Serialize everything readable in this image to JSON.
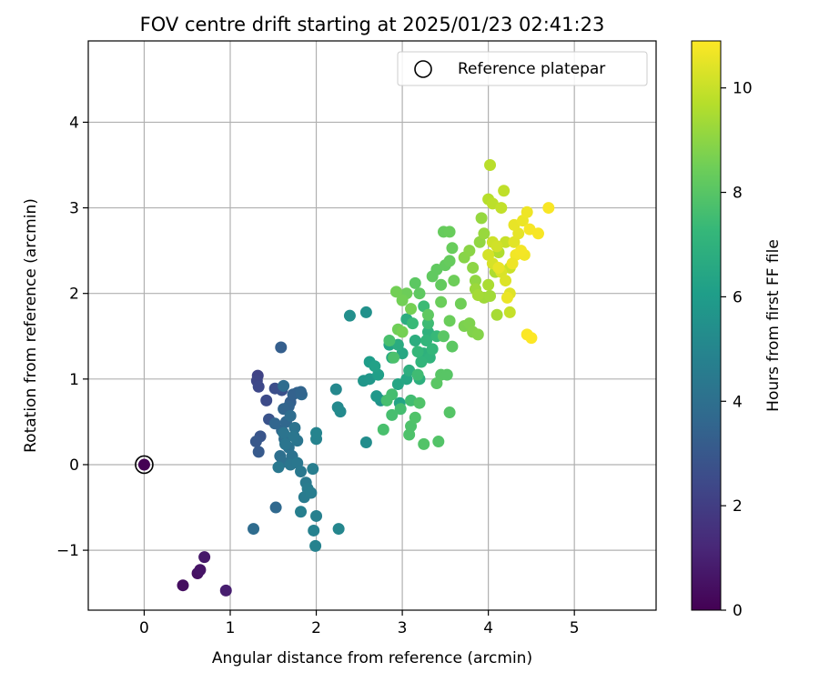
{
  "chart_data": {
    "type": "scatter",
    "title": "FOV centre drift starting at 2025/01/23 02:41:23",
    "xlabel": "Angular distance from reference (arcmin)",
    "ylabel": "Rotation from reference (arcmin)",
    "xlim": [
      -0.65,
      5.95
    ],
    "ylim": [
      -1.7,
      4.95
    ],
    "xticks": [
      0,
      1,
      2,
      3,
      4,
      5
    ],
    "yticks": [
      -1,
      0,
      1,
      2,
      3,
      4
    ],
    "xtick_labels": [
      "0",
      "1",
      "2",
      "3",
      "4",
      "5"
    ],
    "ytick_labels": [
      "−1",
      "0",
      "1",
      "2",
      "3",
      "4"
    ],
    "grid": true,
    "legend": {
      "position": "top-right",
      "entries": [
        "Reference platepar"
      ]
    },
    "reference_point": {
      "x": 0,
      "y": 0,
      "marker": "hollow-circle"
    },
    "colorbar": {
      "label": "Hours from first FF file",
      "range": [
        0,
        10.9
      ],
      "ticks": [
        0,
        2,
        4,
        6,
        8,
        10
      ],
      "tick_labels": [
        "0",
        "2",
        "4",
        "6",
        "8",
        "10"
      ],
      "colormap": "viridis"
    },
    "colormap_stops": [
      "#440154",
      "#482878",
      "#3e4989",
      "#31688e",
      "#26828e",
      "#1f9e89",
      "#35b779",
      "#6ece58",
      "#b5de2b",
      "#fde725"
    ],
    "series": [
      {
        "points": [
          [
            0.0,
            0.0,
            0.0
          ],
          [
            0.45,
            -1.41,
            0.4
          ],
          [
            0.62,
            -1.27,
            0.5
          ],
          [
            0.65,
            -1.23,
            0.6
          ],
          [
            0.7,
            -1.08,
            0.7
          ],
          [
            0.95,
            -1.47,
            0.9
          ],
          [
            1.32,
            1.04,
            2.2
          ],
          [
            1.31,
            0.98,
            2.3
          ],
          [
            1.33,
            0.91,
            2.4
          ],
          [
            1.42,
            0.75,
            2.5
          ],
          [
            1.52,
            0.89,
            2.6
          ],
          [
            1.6,
            0.87,
            2.7
          ],
          [
            1.45,
            0.53,
            2.8
          ],
          [
            1.35,
            0.33,
            2.9
          ],
          [
            1.3,
            0.27,
            3.0
          ],
          [
            1.33,
            0.15,
            3.1
          ],
          [
            1.59,
            1.37,
            3.3
          ],
          [
            1.7,
            0.73,
            3.3
          ],
          [
            1.78,
            0.84,
            3.35
          ],
          [
            1.73,
            0.82,
            3.4
          ],
          [
            1.68,
            0.68,
            3.45
          ],
          [
            1.62,
            0.65,
            3.5
          ],
          [
            1.52,
            0.48,
            3.55
          ],
          [
            1.6,
            0.4,
            3.6
          ],
          [
            1.65,
            0.5,
            3.65
          ],
          [
            1.83,
            0.82,
            3.7
          ],
          [
            1.82,
            0.85,
            3.5
          ],
          [
            1.53,
            -0.5,
            3.7
          ],
          [
            1.27,
            -0.75,
            3.8
          ],
          [
            1.62,
            0.92,
            3.8
          ],
          [
            1.7,
            0.57,
            3.85
          ],
          [
            1.63,
            0.3,
            3.9
          ],
          [
            1.58,
            0.1,
            3.95
          ],
          [
            1.61,
            0.03,
            4.0
          ],
          [
            1.68,
            0.2,
            4.05
          ],
          [
            1.72,
            0.1,
            4.1
          ],
          [
            1.75,
            0.43,
            4.15
          ],
          [
            1.62,
            0.37,
            4.2
          ],
          [
            1.78,
            0.28,
            4.25
          ],
          [
            1.7,
            0.0,
            4.3
          ],
          [
            1.78,
            0.02,
            4.35
          ],
          [
            1.82,
            -0.08,
            4.4
          ],
          [
            1.88,
            -0.21,
            4.45
          ],
          [
            1.86,
            -0.38,
            4.5
          ],
          [
            1.9,
            -0.28,
            4.55
          ],
          [
            1.94,
            -0.33,
            4.6
          ],
          [
            1.96,
            -0.05,
            4.65
          ],
          [
            1.82,
            -0.55,
            4.7
          ],
          [
            2.0,
            -0.6,
            4.75
          ],
          [
            1.97,
            -0.77,
            4.8
          ],
          [
            1.99,
            -0.95,
            4.85
          ],
          [
            2.0,
            0.3,
            4.9
          ],
          [
            2.0,
            0.37,
            4.95
          ],
          [
            1.56,
            -0.03,
            4.4
          ],
          [
            1.64,
            0.24,
            4.25
          ],
          [
            1.74,
            0.33,
            4.3
          ],
          [
            2.26,
            -0.75,
            5.0
          ],
          [
            2.23,
            0.88,
            5.1
          ],
          [
            2.25,
            0.67,
            5.15
          ],
          [
            2.28,
            0.62,
            5.2
          ],
          [
            2.58,
            0.26,
            5.3
          ],
          [
            2.39,
            1.74,
            5.4
          ],
          [
            2.58,
            1.78,
            5.5
          ],
          [
            2.75,
            0.75,
            5.6
          ],
          [
            2.55,
            0.98,
            5.7
          ],
          [
            2.62,
            1.0,
            5.75
          ],
          [
            2.7,
            0.8,
            5.8
          ],
          [
            2.62,
            1.2,
            6.0
          ],
          [
            2.72,
            1.05,
            6.1
          ],
          [
            2.68,
            1.15,
            6.2
          ],
          [
            2.85,
            1.4,
            6.3
          ],
          [
            2.97,
            0.72,
            6.35
          ],
          [
            2.95,
            0.94,
            6.4
          ],
          [
            3.05,
            1.0,
            6.45
          ],
          [
            3.0,
            1.3,
            6.5
          ],
          [
            2.88,
            1.25,
            6.6
          ],
          [
            2.95,
            1.4,
            6.7
          ],
          [
            3.05,
            1.7,
            6.75
          ],
          [
            3.15,
            1.45,
            6.8
          ],
          [
            3.08,
            1.1,
            6.85
          ],
          [
            3.2,
            1.0,
            6.9
          ],
          [
            3.25,
            1.3,
            6.95
          ],
          [
            3.3,
            1.55,
            7.0
          ],
          [
            3.32,
            1.25,
            7.05
          ],
          [
            3.22,
            1.2,
            7.1
          ],
          [
            3.28,
            1.45,
            7.15
          ],
          [
            3.35,
            1.35,
            7.2
          ],
          [
            3.18,
            1.32,
            7.25
          ],
          [
            3.4,
            1.5,
            7.3
          ],
          [
            3.12,
            1.65,
            7.35
          ],
          [
            3.25,
            1.85,
            7.4
          ],
          [
            3.3,
            1.65,
            7.45
          ],
          [
            3.18,
            1.05,
            7.5
          ],
          [
            3.1,
            0.75,
            7.55
          ],
          [
            2.98,
            0.65,
            7.6
          ],
          [
            2.88,
            0.82,
            7.6
          ],
          [
            2.82,
            0.75,
            7.65
          ],
          [
            2.88,
            0.58,
            7.65
          ],
          [
            2.85,
            1.45,
            7.7
          ],
          [
            2.78,
            0.41,
            7.7
          ],
          [
            2.9,
            1.25,
            7.75
          ],
          [
            3.08,
            0.35,
            7.8
          ],
          [
            3.1,
            0.45,
            7.8
          ],
          [
            3.15,
            0.55,
            7.85
          ],
          [
            3.2,
            0.72,
            7.85
          ],
          [
            3.25,
            0.24,
            7.9
          ],
          [
            3.42,
            0.27,
            7.9
          ],
          [
            3.55,
            0.61,
            7.95
          ],
          [
            3.45,
            1.05,
            8.0
          ],
          [
            3.52,
            1.05,
            8.0
          ],
          [
            3.4,
            0.95,
            8.05
          ],
          [
            3.48,
            1.5,
            8.05
          ],
          [
            3.58,
            1.38,
            8.1
          ],
          [
            3.15,
            2.12,
            8.1
          ],
          [
            3.2,
            2.0,
            8.15
          ],
          [
            3.3,
            1.75,
            8.15
          ],
          [
            3.35,
            2.2,
            8.2
          ],
          [
            3.4,
            2.28,
            8.2
          ],
          [
            3.45,
            2.1,
            8.25
          ],
          [
            3.5,
            2.33,
            8.25
          ],
          [
            3.55,
            2.38,
            8.3
          ],
          [
            3.48,
            2.72,
            8.3
          ],
          [
            3.55,
            2.72,
            8.35
          ],
          [
            3.58,
            2.53,
            8.35
          ],
          [
            3.45,
            1.9,
            8.4
          ],
          [
            3.55,
            1.68,
            8.4
          ],
          [
            3.6,
            2.15,
            8.45
          ],
          [
            3.68,
            1.88,
            8.5
          ],
          [
            3.05,
            2.0,
            8.45
          ],
          [
            2.95,
            1.58,
            8.5
          ],
          [
            3.0,
            1.92,
            8.55
          ],
          [
            2.93,
            2.02,
            8.55
          ],
          [
            3.1,
            1.82,
            8.6
          ],
          [
            3.0,
            1.55,
            8.6
          ],
          [
            3.72,
            1.62,
            8.7
          ],
          [
            3.78,
            1.65,
            8.75
          ],
          [
            3.82,
            1.55,
            8.8
          ],
          [
            3.88,
            1.52,
            8.85
          ],
          [
            3.72,
            2.42,
            8.9
          ],
          [
            3.78,
            2.5,
            8.95
          ],
          [
            3.82,
            2.3,
            9.0
          ],
          [
            3.85,
            2.15,
            9.05
          ],
          [
            3.9,
            2.6,
            9.1
          ],
          [
            3.92,
            2.88,
            9.15
          ],
          [
            3.95,
            2.7,
            9.2
          ],
          [
            3.85,
            2.05,
            9.25
          ],
          [
            3.95,
            1.95,
            9.3
          ],
          [
            4.02,
            1.97,
            9.35
          ],
          [
            3.88,
            1.98,
            9.4
          ],
          [
            4.1,
            1.75,
            9.45
          ],
          [
            4.0,
            2.1,
            9.5
          ],
          [
            4.08,
            2.25,
            9.55
          ],
          [
            4.12,
            2.48,
            9.6
          ],
          [
            4.0,
            3.1,
            9.7
          ],
          [
            4.02,
            3.5,
            9.75
          ],
          [
            4.05,
            3.05,
            9.8
          ],
          [
            4.18,
            3.2,
            9.85
          ],
          [
            4.15,
            3.0,
            9.9
          ],
          [
            4.25,
            1.78,
            9.95
          ],
          [
            4.2,
            2.6,
            10.0
          ],
          [
            4.25,
            2.3,
            10.05
          ],
          [
            4.05,
            2.6,
            10.1
          ],
          [
            4.1,
            2.55,
            10.15
          ],
          [
            4.0,
            2.45,
            10.2
          ],
          [
            4.05,
            2.35,
            10.25
          ],
          [
            4.15,
            2.25,
            10.3
          ],
          [
            4.2,
            2.15,
            10.35
          ],
          [
            4.25,
            2.0,
            10.4
          ],
          [
            4.3,
            2.6,
            10.45
          ],
          [
            4.35,
            2.7,
            10.5
          ],
          [
            4.3,
            2.8,
            10.55
          ],
          [
            4.4,
            2.85,
            10.6
          ],
          [
            4.45,
            2.95,
            10.65
          ],
          [
            4.42,
            2.45,
            10.7
          ],
          [
            4.32,
            2.45,
            10.72
          ],
          [
            4.38,
            2.5,
            10.75
          ],
          [
            4.48,
            2.75,
            10.78
          ],
          [
            4.58,
            2.7,
            10.8
          ],
          [
            4.7,
            3.0,
            10.82
          ],
          [
            4.45,
            1.52,
            10.85
          ],
          [
            4.5,
            1.48,
            10.88
          ],
          [
            4.22,
            1.95,
            10.6
          ],
          [
            4.28,
            2.35,
            10.65
          ],
          [
            4.12,
            2.3,
            10.55
          ]
        ]
      }
    ]
  }
}
